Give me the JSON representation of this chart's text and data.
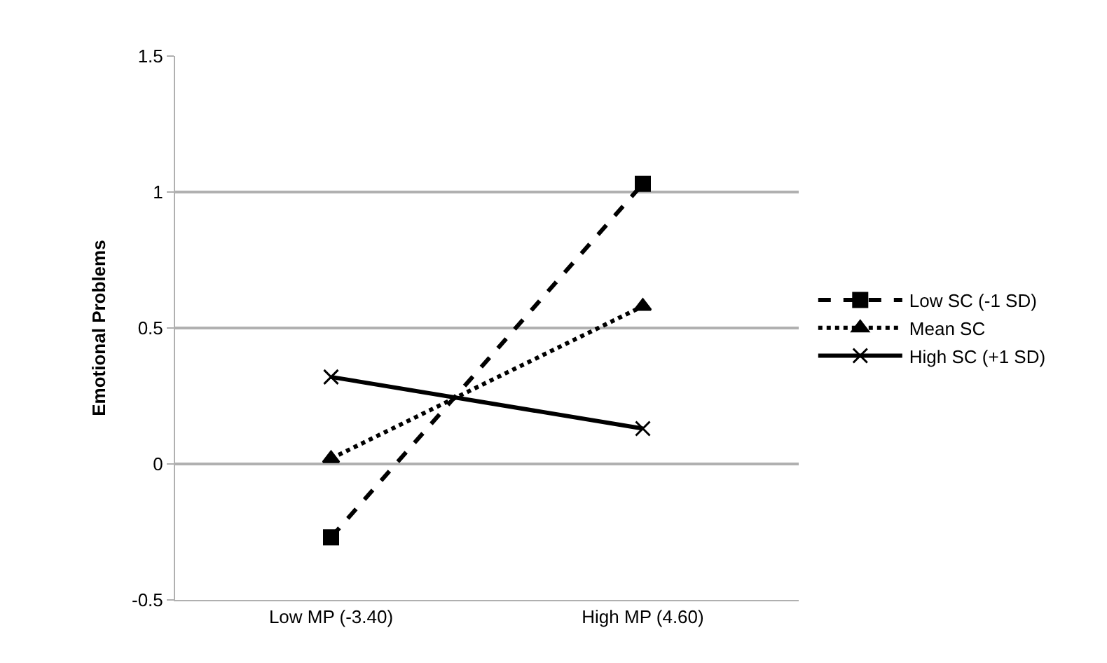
{
  "chart_data": {
    "type": "line",
    "ylabel": "Emotional Problems",
    "categories": [
      "Low MP (-3.40)",
      "High MP (4.60)"
    ],
    "series": [
      {
        "name": "Low SC (-1 SD)",
        "color": "#000000",
        "values": [
          -0.27,
          1.03
        ],
        "marker": "square",
        "line_style": "dashed"
      },
      {
        "name": "Mean SC",
        "color": "#000000",
        "values": [
          0.02,
          0.58
        ],
        "marker": "triangle",
        "line_style": "dotted"
      },
      {
        "name": "High SC (+1 SD)",
        "color": "#000000",
        "values": [
          0.32,
          0.13
        ],
        "marker": "cross",
        "line_style": "solid"
      }
    ],
    "ylim": [
      -0.5,
      1.5
    ],
    "yticks": [
      -0.5,
      0,
      0.5,
      1,
      1.5
    ],
    "grid": "y",
    "legend": "right"
  }
}
